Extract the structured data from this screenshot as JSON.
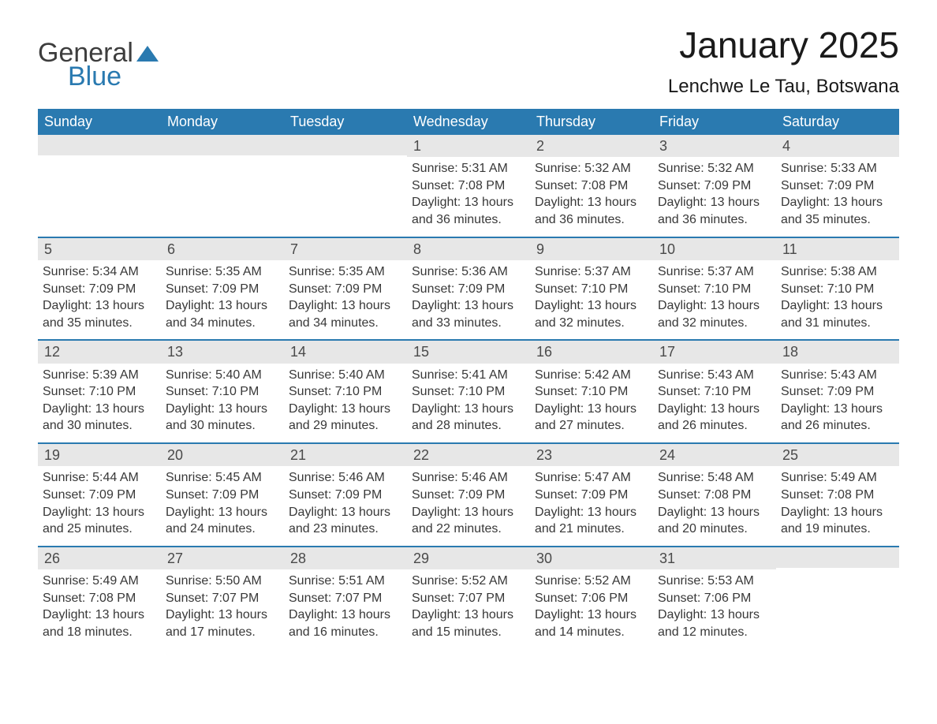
{
  "logo": {
    "text1": "General",
    "text2": "Blue",
    "color_general": "#3d3d3d",
    "color_blue": "#2a7ab0"
  },
  "title": "January 2025",
  "location": "Lenchwe Le Tau, Botswana",
  "colors": {
    "header_bg": "#2a7ab0",
    "header_text": "#ffffff",
    "daynum_bg": "#e7e7e7",
    "week_border": "#2a7ab0",
    "body_text": "#383838"
  },
  "weekdays": [
    "Sunday",
    "Monday",
    "Tuesday",
    "Wednesday",
    "Thursday",
    "Friday",
    "Saturday"
  ],
  "weeks": [
    [
      {
        "day": "",
        "sunrise": "",
        "sunset": "",
        "daylight": ""
      },
      {
        "day": "",
        "sunrise": "",
        "sunset": "",
        "daylight": ""
      },
      {
        "day": "",
        "sunrise": "",
        "sunset": "",
        "daylight": ""
      },
      {
        "day": "1",
        "sunrise": "Sunrise: 5:31 AM",
        "sunset": "Sunset: 7:08 PM",
        "daylight": "Daylight: 13 hours and 36 minutes."
      },
      {
        "day": "2",
        "sunrise": "Sunrise: 5:32 AM",
        "sunset": "Sunset: 7:08 PM",
        "daylight": "Daylight: 13 hours and 36 minutes."
      },
      {
        "day": "3",
        "sunrise": "Sunrise: 5:32 AM",
        "sunset": "Sunset: 7:09 PM",
        "daylight": "Daylight: 13 hours and 36 minutes."
      },
      {
        "day": "4",
        "sunrise": "Sunrise: 5:33 AM",
        "sunset": "Sunset: 7:09 PM",
        "daylight": "Daylight: 13 hours and 35 minutes."
      }
    ],
    [
      {
        "day": "5",
        "sunrise": "Sunrise: 5:34 AM",
        "sunset": "Sunset: 7:09 PM",
        "daylight": "Daylight: 13 hours and 35 minutes."
      },
      {
        "day": "6",
        "sunrise": "Sunrise: 5:35 AM",
        "sunset": "Sunset: 7:09 PM",
        "daylight": "Daylight: 13 hours and 34 minutes."
      },
      {
        "day": "7",
        "sunrise": "Sunrise: 5:35 AM",
        "sunset": "Sunset: 7:09 PM",
        "daylight": "Daylight: 13 hours and 34 minutes."
      },
      {
        "day": "8",
        "sunrise": "Sunrise: 5:36 AM",
        "sunset": "Sunset: 7:09 PM",
        "daylight": "Daylight: 13 hours and 33 minutes."
      },
      {
        "day": "9",
        "sunrise": "Sunrise: 5:37 AM",
        "sunset": "Sunset: 7:10 PM",
        "daylight": "Daylight: 13 hours and 32 minutes."
      },
      {
        "day": "10",
        "sunrise": "Sunrise: 5:37 AM",
        "sunset": "Sunset: 7:10 PM",
        "daylight": "Daylight: 13 hours and 32 minutes."
      },
      {
        "day": "11",
        "sunrise": "Sunrise: 5:38 AM",
        "sunset": "Sunset: 7:10 PM",
        "daylight": "Daylight: 13 hours and 31 minutes."
      }
    ],
    [
      {
        "day": "12",
        "sunrise": "Sunrise: 5:39 AM",
        "sunset": "Sunset: 7:10 PM",
        "daylight": "Daylight: 13 hours and 30 minutes."
      },
      {
        "day": "13",
        "sunrise": "Sunrise: 5:40 AM",
        "sunset": "Sunset: 7:10 PM",
        "daylight": "Daylight: 13 hours and 30 minutes."
      },
      {
        "day": "14",
        "sunrise": "Sunrise: 5:40 AM",
        "sunset": "Sunset: 7:10 PM",
        "daylight": "Daylight: 13 hours and 29 minutes."
      },
      {
        "day": "15",
        "sunrise": "Sunrise: 5:41 AM",
        "sunset": "Sunset: 7:10 PM",
        "daylight": "Daylight: 13 hours and 28 minutes."
      },
      {
        "day": "16",
        "sunrise": "Sunrise: 5:42 AM",
        "sunset": "Sunset: 7:10 PM",
        "daylight": "Daylight: 13 hours and 27 minutes."
      },
      {
        "day": "17",
        "sunrise": "Sunrise: 5:43 AM",
        "sunset": "Sunset: 7:10 PM",
        "daylight": "Daylight: 13 hours and 26 minutes."
      },
      {
        "day": "18",
        "sunrise": "Sunrise: 5:43 AM",
        "sunset": "Sunset: 7:09 PM",
        "daylight": "Daylight: 13 hours and 26 minutes."
      }
    ],
    [
      {
        "day": "19",
        "sunrise": "Sunrise: 5:44 AM",
        "sunset": "Sunset: 7:09 PM",
        "daylight": "Daylight: 13 hours and 25 minutes."
      },
      {
        "day": "20",
        "sunrise": "Sunrise: 5:45 AM",
        "sunset": "Sunset: 7:09 PM",
        "daylight": "Daylight: 13 hours and 24 minutes."
      },
      {
        "day": "21",
        "sunrise": "Sunrise: 5:46 AM",
        "sunset": "Sunset: 7:09 PM",
        "daylight": "Daylight: 13 hours and 23 minutes."
      },
      {
        "day": "22",
        "sunrise": "Sunrise: 5:46 AM",
        "sunset": "Sunset: 7:09 PM",
        "daylight": "Daylight: 13 hours and 22 minutes."
      },
      {
        "day": "23",
        "sunrise": "Sunrise: 5:47 AM",
        "sunset": "Sunset: 7:09 PM",
        "daylight": "Daylight: 13 hours and 21 minutes."
      },
      {
        "day": "24",
        "sunrise": "Sunrise: 5:48 AM",
        "sunset": "Sunset: 7:08 PM",
        "daylight": "Daylight: 13 hours and 20 minutes."
      },
      {
        "day": "25",
        "sunrise": "Sunrise: 5:49 AM",
        "sunset": "Sunset: 7:08 PM",
        "daylight": "Daylight: 13 hours and 19 minutes."
      }
    ],
    [
      {
        "day": "26",
        "sunrise": "Sunrise: 5:49 AM",
        "sunset": "Sunset: 7:08 PM",
        "daylight": "Daylight: 13 hours and 18 minutes."
      },
      {
        "day": "27",
        "sunrise": "Sunrise: 5:50 AM",
        "sunset": "Sunset: 7:07 PM",
        "daylight": "Daylight: 13 hours and 17 minutes."
      },
      {
        "day": "28",
        "sunrise": "Sunrise: 5:51 AM",
        "sunset": "Sunset: 7:07 PM",
        "daylight": "Daylight: 13 hours and 16 minutes."
      },
      {
        "day": "29",
        "sunrise": "Sunrise: 5:52 AM",
        "sunset": "Sunset: 7:07 PM",
        "daylight": "Daylight: 13 hours and 15 minutes."
      },
      {
        "day": "30",
        "sunrise": "Sunrise: 5:52 AM",
        "sunset": "Sunset: 7:06 PM",
        "daylight": "Daylight: 13 hours and 14 minutes."
      },
      {
        "day": "31",
        "sunrise": "Sunrise: 5:53 AM",
        "sunset": "Sunset: 7:06 PM",
        "daylight": "Daylight: 13 hours and 12 minutes."
      },
      {
        "day": "",
        "sunrise": "",
        "sunset": "",
        "daylight": ""
      }
    ]
  ]
}
